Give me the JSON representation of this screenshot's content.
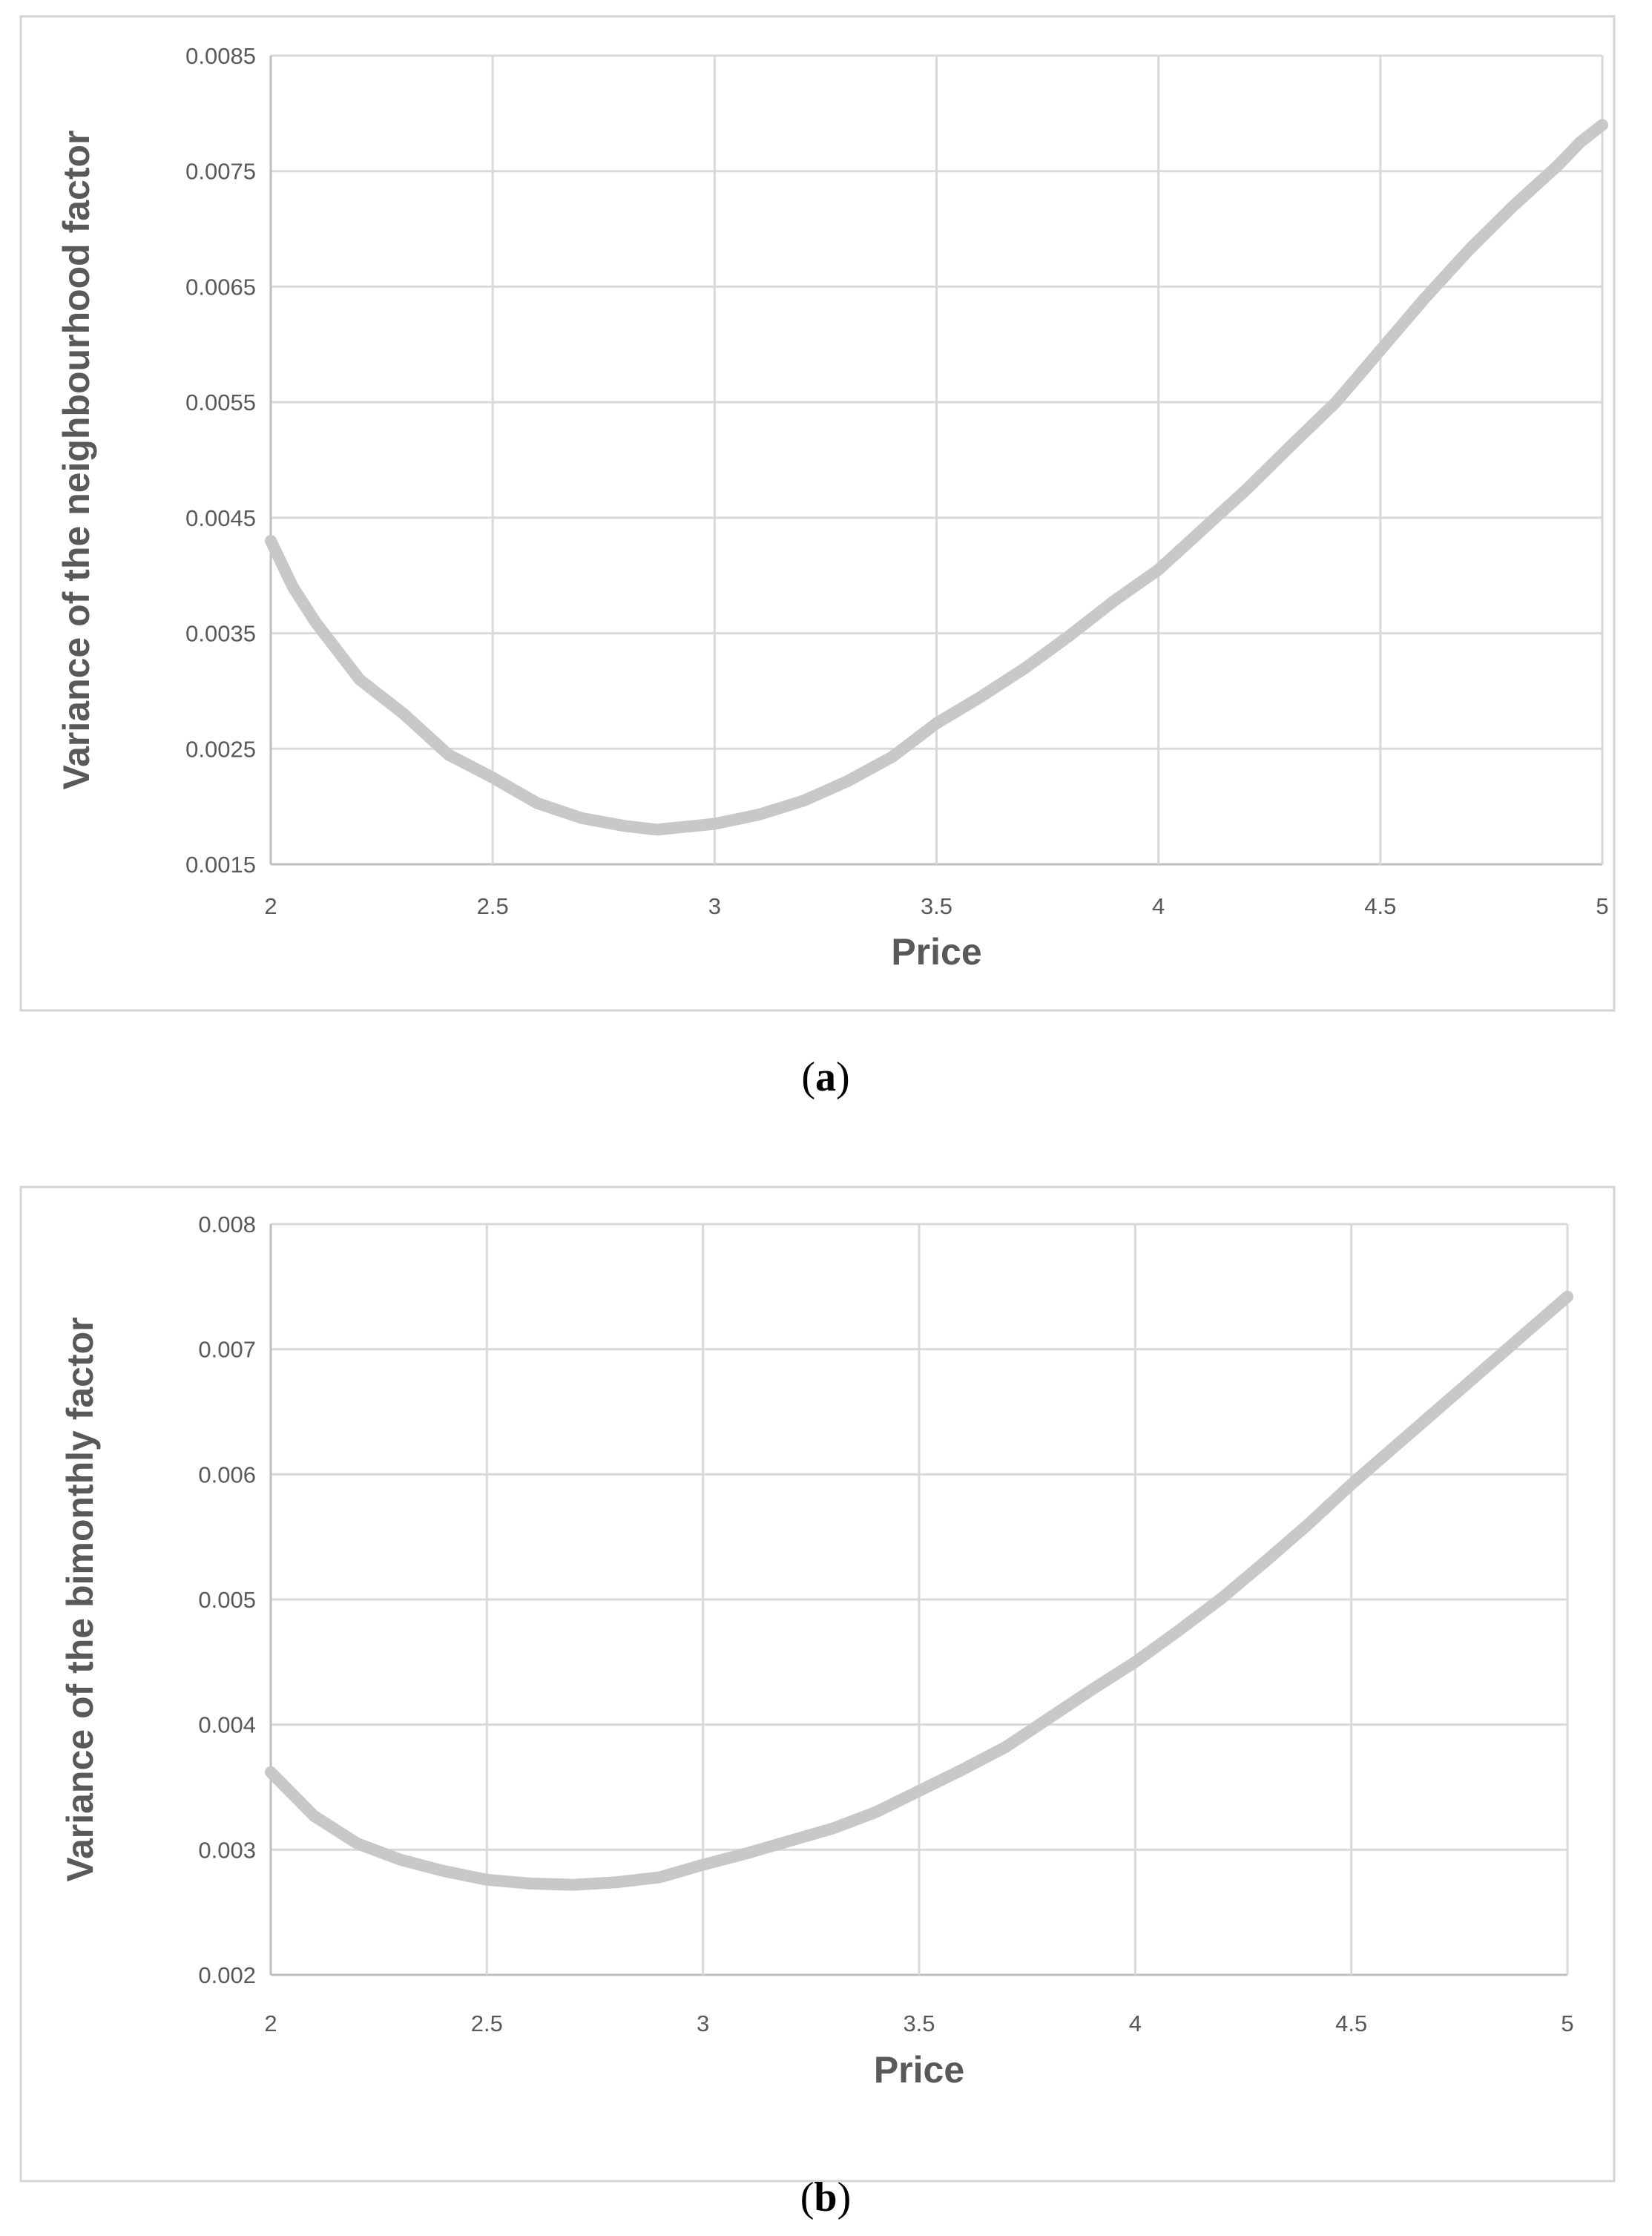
{
  "chart_data": [
    {
      "type": "line",
      "caption_letter": "a",
      "xlabel": "Price",
      "ylabel": "Variance of the neighbourhood factor",
      "xlim": [
        2,
        5
      ],
      "ylim": [
        0.0015,
        0.0085
      ],
      "xticks": [
        2,
        2.5,
        3,
        3.5,
        4,
        4.5,
        5
      ],
      "xtick_labels": [
        "2",
        "2.5",
        "3",
        "3.5",
        "4",
        "4.5",
        "5"
      ],
      "yticks": [
        0.0015,
        0.0025,
        0.0035,
        0.0045,
        0.0055,
        0.0065,
        0.0075,
        0.0085
      ],
      "ytick_labels": [
        "0.0015",
        "0.0025",
        "0.0035",
        "0.0045",
        "0.0055",
        "0.0065",
        "0.0075",
        "0.0085"
      ],
      "grid": true,
      "series": [
        {
          "color": "#c8c8c8",
          "x": [
            2.0,
            2.05,
            2.1,
            2.2,
            2.3,
            2.4,
            2.5,
            2.6,
            2.7,
            2.8,
            2.87,
            2.95,
            3.0,
            3.1,
            3.2,
            3.3,
            3.4,
            3.5,
            3.6,
            3.7,
            3.8,
            3.9,
            4.0,
            4.1,
            4.2,
            4.3,
            4.4,
            4.5,
            4.6,
            4.7,
            4.8,
            4.9,
            4.95,
            5.0
          ],
          "y": [
            0.0043,
            0.0039,
            0.0036,
            0.0031,
            0.0028,
            0.00245,
            0.00225,
            0.00203,
            0.0019,
            0.00183,
            0.0018,
            0.00183,
            0.00185,
            0.00193,
            0.00205,
            0.00222,
            0.00243,
            0.00272,
            0.00295,
            0.0032,
            0.00348,
            0.00378,
            0.00405,
            0.0044,
            0.00475,
            0.00513,
            0.0055,
            0.00595,
            0.0064,
            0.00682,
            0.0072,
            0.00755,
            0.00775,
            0.0079
          ]
        }
      ]
    },
    {
      "type": "line",
      "caption_letter": "b",
      "xlabel": "Price",
      "ylabel": "Variance of the bimonthly factor",
      "xlim": [
        2,
        5
      ],
      "ylim": [
        0.002,
        0.008
      ],
      "xticks": [
        2,
        2.5,
        3,
        3.5,
        4,
        4.5,
        5
      ],
      "xtick_labels": [
        "2",
        "2.5",
        "3",
        "3.5",
        "4",
        "4.5",
        "5"
      ],
      "yticks": [
        0.002,
        0.003,
        0.004,
        0.005,
        0.006,
        0.007,
        0.008
      ],
      "ytick_labels": [
        "0.002",
        "0.003",
        "0.004",
        "0.005",
        "0.006",
        "0.007",
        "0.008"
      ],
      "grid": true,
      "series": [
        {
          "color": "#c8c8c8",
          "x": [
            2.0,
            2.1,
            2.2,
            2.3,
            2.4,
            2.5,
            2.6,
            2.7,
            2.8,
            2.9,
            3.0,
            3.1,
            3.2,
            3.3,
            3.4,
            3.5,
            3.6,
            3.7,
            3.8,
            3.9,
            4.0,
            4.1,
            4.2,
            4.3,
            4.4,
            4.5,
            4.6,
            4.7,
            4.8,
            4.9,
            5.0
          ],
          "y": [
            0.00362,
            0.00327,
            0.00305,
            0.00292,
            0.00283,
            0.00276,
            0.00273,
            0.00272,
            0.00274,
            0.00278,
            0.00288,
            0.00297,
            0.00307,
            0.00317,
            0.0033,
            0.00347,
            0.00364,
            0.00382,
            0.00405,
            0.00428,
            0.0045,
            0.00475,
            0.00501,
            0.0053,
            0.0056,
            0.00592,
            0.00622,
            0.00652,
            0.00682,
            0.00712,
            0.00742
          ]
        }
      ]
    }
  ]
}
